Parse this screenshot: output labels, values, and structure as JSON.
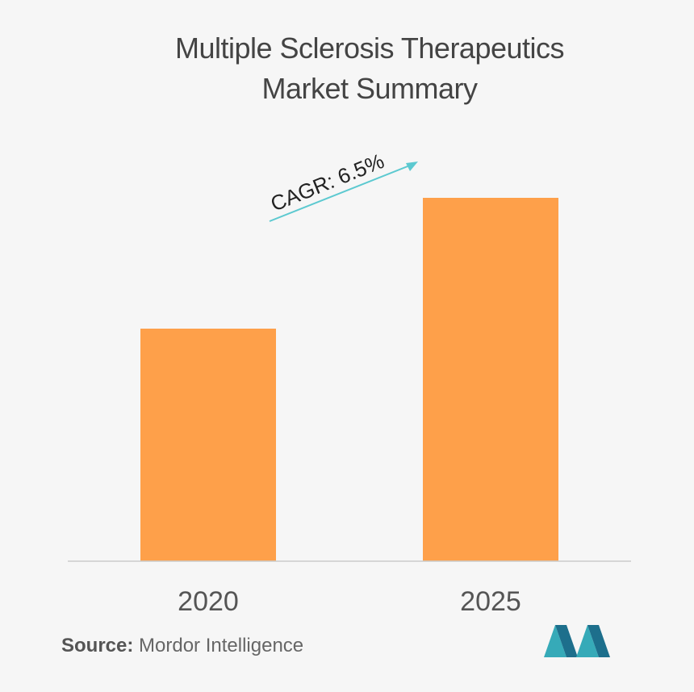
{
  "chart_data": {
    "type": "bar",
    "title": [
      "Multiple Sclerosis Therapeutics",
      "Market Summary"
    ],
    "categories": [
      "2020",
      "2025"
    ],
    "values": [
      0.64,
      1.0
    ],
    "value_scale": "relative (bars unlabeled; heights estimated from pixels)",
    "ylim": [
      0,
      1.1
    ],
    "grid": false,
    "legend": "none",
    "annotation": {
      "text": "CAGR: 6.5%",
      "kind": "rising-arrow"
    },
    "colors": {
      "bar": "#fea04a",
      "arrow": "#5cc9d0",
      "baseline": "#cccccc"
    }
  },
  "source": {
    "label": "Source:",
    "value": "Mordor Intelligence"
  },
  "logo": {
    "icon": "mordor-intelligence-logo-icon",
    "colors": [
      "#36aab8",
      "#1d6f8c"
    ]
  }
}
